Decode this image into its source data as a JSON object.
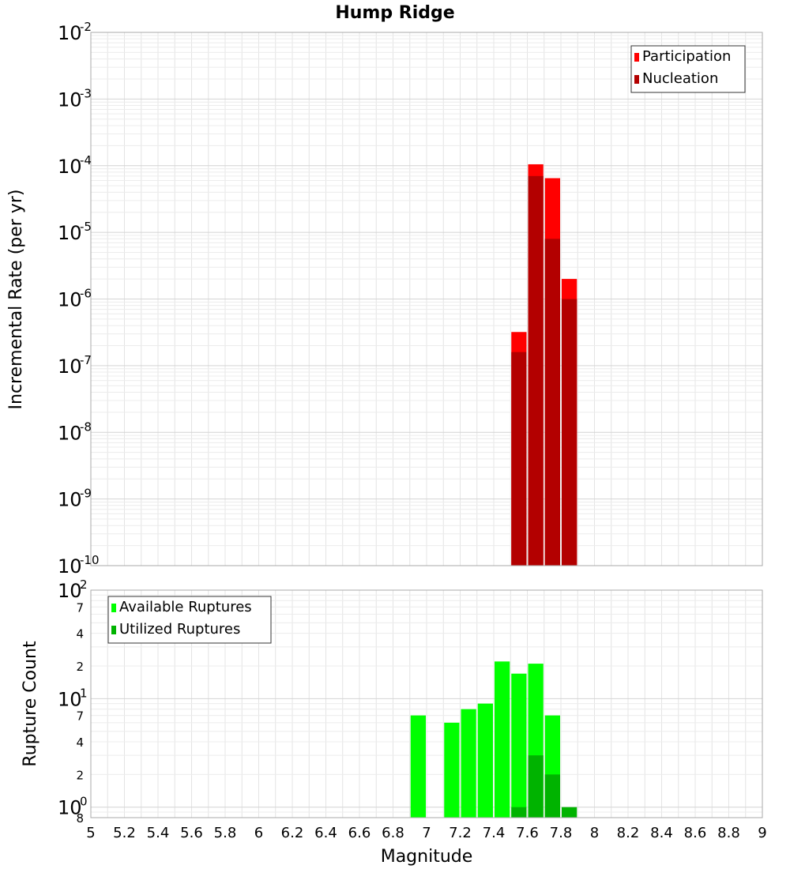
{
  "chart_data": [
    {
      "type": "bar",
      "title": "Hump Ridge",
      "xlabel": "",
      "ylabel": "Incremental Rate (per yr)",
      "xlim": [
        5,
        9
      ],
      "ylim": [
        1e-10,
        0.01
      ],
      "y_scale": "log",
      "grid": true,
      "legend_position": "top-right",
      "x_ticks": [
        "5",
        "5.2",
        "5.4",
        "5.6",
        "5.8",
        "6",
        "6.2",
        "6.4",
        "6.6",
        "6.8",
        "7",
        "7.2",
        "7.4",
        "7.6",
        "7.8",
        "8",
        "8.2",
        "8.4",
        "8.6",
        "8.8",
        "9"
      ],
      "y_ticks": [
        {
          "base": "10",
          "exp": "-10"
        },
        {
          "base": "10",
          "exp": "-9"
        },
        {
          "base": "10",
          "exp": "-8"
        },
        {
          "base": "10",
          "exp": "-7"
        },
        {
          "base": "10",
          "exp": "-6"
        },
        {
          "base": "10",
          "exp": "-5"
        },
        {
          "base": "10",
          "exp": "-4"
        },
        {
          "base": "10",
          "exp": "-3"
        },
        {
          "base": "10",
          "exp": "-2"
        }
      ],
      "x": [
        7.55,
        7.65,
        7.75,
        7.85
      ],
      "series": [
        {
          "name": "Participation",
          "color": "#ff0000",
          "values": [
            3.2e-07,
            0.000105,
            6.5e-05,
            2e-06
          ]
        },
        {
          "name": "Nucleation",
          "color": "#b30000",
          "values": [
            1.6e-07,
            7e-05,
            8e-06,
            1e-06
          ]
        }
      ]
    },
    {
      "type": "bar",
      "title": "",
      "xlabel": "Magnitude",
      "ylabel": "Rupture Count",
      "xlim": [
        5,
        9
      ],
      "ylim": [
        0.8,
        100
      ],
      "y_scale": "log",
      "grid": true,
      "legend_position": "top-left",
      "x_ticks": [
        "5",
        "5.2",
        "5.4",
        "5.6",
        "5.8",
        "6",
        "6.2",
        "6.4",
        "6.6",
        "6.8",
        "7",
        "7.2",
        "7.4",
        "7.6",
        "7.8",
        "8",
        "8.2",
        "8.4",
        "8.6",
        "8.8",
        "9"
      ],
      "y_ticks": [
        {
          "base": "10",
          "exp": "0"
        },
        {
          "base": "10",
          "exp": "1"
        },
        {
          "base": "10",
          "exp": "2"
        }
      ],
      "y_minor_labels": [
        {
          "value": 0.8,
          "label": "8"
        },
        {
          "value": 2,
          "label": "2"
        },
        {
          "value": 4,
          "label": "4"
        },
        {
          "value": 7,
          "label": "7"
        },
        {
          "value": 20,
          "label": "2"
        },
        {
          "value": 40,
          "label": "4"
        },
        {
          "value": 70,
          "label": "7"
        }
      ],
      "x": [
        6.95,
        7.05,
        7.15,
        7.25,
        7.35,
        7.45,
        7.55,
        7.65,
        7.75,
        7.85
      ],
      "series": [
        {
          "name": "Available Ruptures",
          "color": "#00ff00",
          "values": [
            7,
            0,
            6,
            8,
            9,
            22,
            17,
            21,
            7,
            0
          ]
        },
        {
          "name": "Utilized Ruptures",
          "color": "#00b300",
          "values": [
            0,
            0,
            0,
            0,
            0,
            0,
            1,
            3,
            2,
            1
          ]
        }
      ]
    }
  ]
}
